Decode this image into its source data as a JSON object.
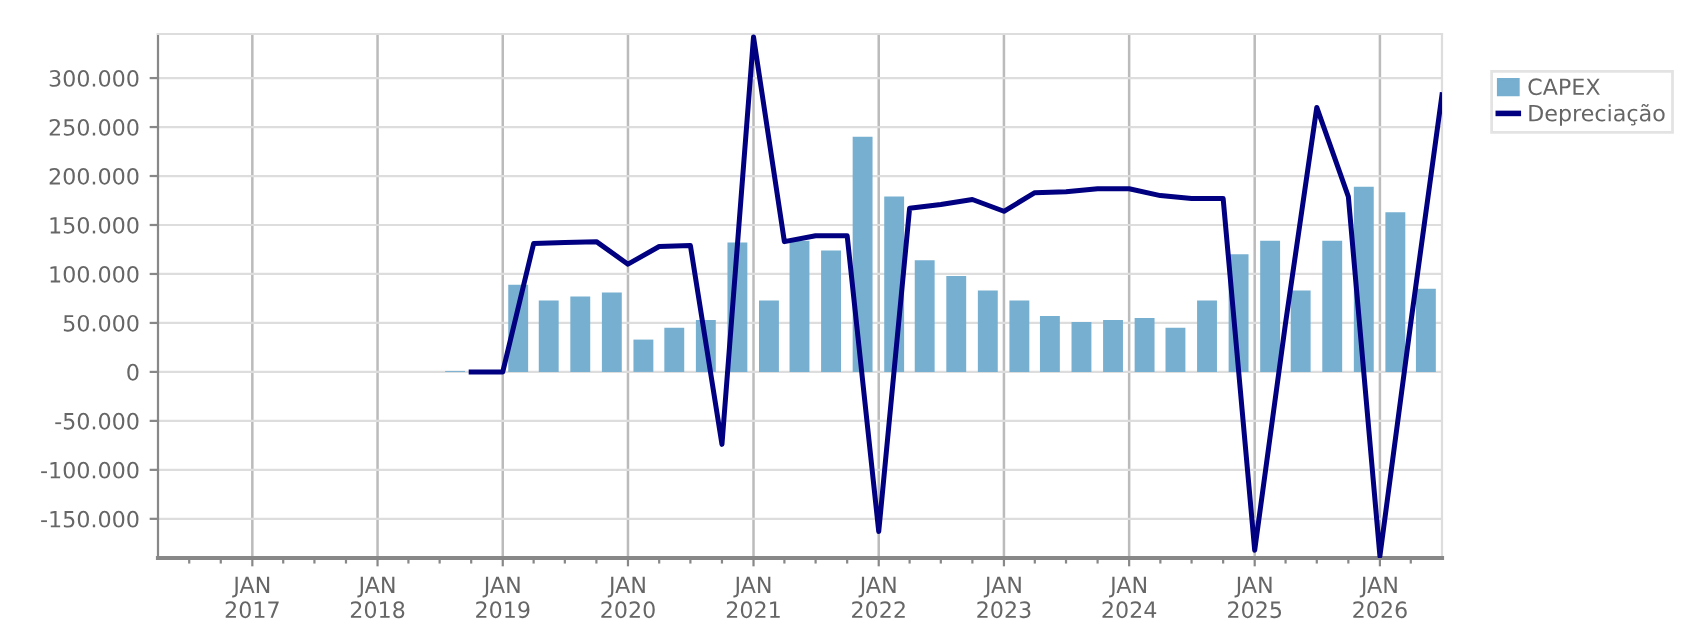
{
  "chart_data": {
    "type": "bar",
    "legend": "top right",
    "grid": true,
    "series": [
      {
        "name": "CAPEX",
        "color": "#77afd0",
        "x": [
          "2018-08-15",
          "2018-11-15",
          "2019-02-15",
          "2019-05-15",
          "2019-08-15",
          "2019-11-15",
          "2020-02-15",
          "2020-05-15",
          "2020-08-15",
          "2020-11-15",
          "2021-02-15",
          "2021-05-15",
          "2021-08-15",
          "2021-11-15",
          "2022-02-15",
          "2022-05-15",
          "2022-08-15",
          "2022-11-15",
          "2023-02-15",
          "2023-05-15",
          "2023-08-15",
          "2023-11-15",
          "2024-02-15",
          "2024-05-15",
          "2024-08-15",
          "2024-11-15",
          "2025-02-15",
          "2025-05-15",
          "2025-08-15",
          "2025-11-15",
          "2026-02-15",
          "2026-05-15"
        ],
        "values": [
          1000,
          null,
          89000,
          73000,
          77000,
          81000,
          33000,
          45000,
          53000,
          132000,
          73000,
          134000,
          124000,
          240000,
          179000,
          114000,
          98000,
          83000,
          73000,
          57000,
          51000,
          53000,
          55000,
          45000,
          73000,
          120000,
          134000,
          83000,
          134000,
          189000,
          163000,
          85000
        ]
      },
      {
        "name": "Depreciação",
        "type": "line",
        "color": "#000080",
        "x": [
          "2018-10-01",
          "2019-01-01",
          "2019-04-01",
          "2019-07-01",
          "2019-10-01",
          "2020-01-01",
          "2020-04-01",
          "2020-07-01",
          "2020-10-01",
          "2021-01-01",
          "2021-04-01",
          "2021-07-01",
          "2021-10-01",
          "2022-01-01",
          "2022-04-01",
          "2022-07-01",
          "2022-10-01",
          "2023-01-01",
          "2023-04-01",
          "2023-07-01",
          "2023-10-01",
          "2024-01-01",
          "2024-04-01",
          "2024-07-01",
          "2024-10-01",
          "2025-01-01",
          "2025-04-01",
          "2025-07-01",
          "2025-10-01",
          "2026-01-01",
          "2026-04-01",
          "2026-07-01"
        ],
        "values": [
          0,
          0,
          131000,
          132000,
          133000,
          110000,
          128000,
          129000,
          -74000,
          342000,
          133000,
          139000,
          139000,
          -163000,
          167000,
          171000,
          176000,
          164000,
          183000,
          184000,
          187000,
          187000,
          180000,
          177000,
          177000,
          -182000,
          50000,
          270000,
          179000,
          -188000,
          50000,
          283000
        ]
      }
    ],
    "ylim": [
      -190000,
      345000
    ],
    "yticks": [
      {
        "value": -150000,
        "label": "-150.000"
      },
      {
        "value": -100000,
        "label": "-100.000"
      },
      {
        "value": -50000,
        "label": "-50.000"
      },
      {
        "value": 0,
        "label": "0"
      },
      {
        "value": 50000,
        "label": "50.000"
      },
      {
        "value": 100000,
        "label": "100.000"
      },
      {
        "value": 150000,
        "label": "150.000"
      },
      {
        "value": 200000,
        "label": "200.000"
      },
      {
        "value": 250000,
        "label": "250.000"
      },
      {
        "value": 300000,
        "label": "300.000"
      }
    ],
    "xlim": [
      "2016-04-01",
      "2026-07-01"
    ],
    "xticks": [
      {
        "value": "2016-07-01",
        "label": null
      },
      {
        "value": "2016-10-01",
        "label": null
      },
      {
        "value": "2017-01-01",
        "label": "JAN\n2017"
      },
      {
        "value": "2017-04-01",
        "label": null
      },
      {
        "value": "2017-07-01",
        "label": null
      },
      {
        "value": "2017-10-01",
        "label": null
      },
      {
        "value": "2018-01-01",
        "label": "JAN\n2018"
      },
      {
        "value": "2018-04-01",
        "label": null
      },
      {
        "value": "2018-07-01",
        "label": null
      },
      {
        "value": "2018-10-01",
        "label": null
      },
      {
        "value": "2019-01-01",
        "label": "JAN\n2019"
      },
      {
        "value": "2019-04-01",
        "label": null
      },
      {
        "value": "2019-07-01",
        "label": null
      },
      {
        "value": "2019-10-01",
        "label": null
      },
      {
        "value": "2020-01-01",
        "label": "JAN\n2020"
      },
      {
        "value": "2020-04-01",
        "label": null
      },
      {
        "value": "2020-07-01",
        "label": null
      },
      {
        "value": "2020-10-01",
        "label": null
      },
      {
        "value": "2021-01-01",
        "label": "JAN\n2021"
      },
      {
        "value": "2021-04-01",
        "label": null
      },
      {
        "value": "2021-07-01",
        "label": null
      },
      {
        "value": "2021-10-01",
        "label": null
      },
      {
        "value": "2022-01-01",
        "label": "JAN\n2022"
      },
      {
        "value": "2022-04-01",
        "label": null
      },
      {
        "value": "2022-07-01",
        "label": null
      },
      {
        "value": "2022-10-01",
        "label": null
      },
      {
        "value": "2023-01-01",
        "label": "JAN\n2023"
      },
      {
        "value": "2023-04-01",
        "label": null
      },
      {
        "value": "2023-07-01",
        "label": null
      },
      {
        "value": "2023-10-01",
        "label": null
      },
      {
        "value": "2024-01-01",
        "label": "JAN\n2024"
      },
      {
        "value": "2024-04-01",
        "label": null
      },
      {
        "value": "2024-07-01",
        "label": null
      },
      {
        "value": "2024-10-01",
        "label": null
      },
      {
        "value": "2025-01-01",
        "label": "JAN\n2025"
      },
      {
        "value": "2025-04-01",
        "label": null
      },
      {
        "value": "2025-07-01",
        "label": null
      },
      {
        "value": "2025-10-01",
        "label": null
      },
      {
        "value": "2026-01-01",
        "label": "JAN\n2026"
      },
      {
        "value": "2026-04-01",
        "label": null
      }
    ]
  }
}
